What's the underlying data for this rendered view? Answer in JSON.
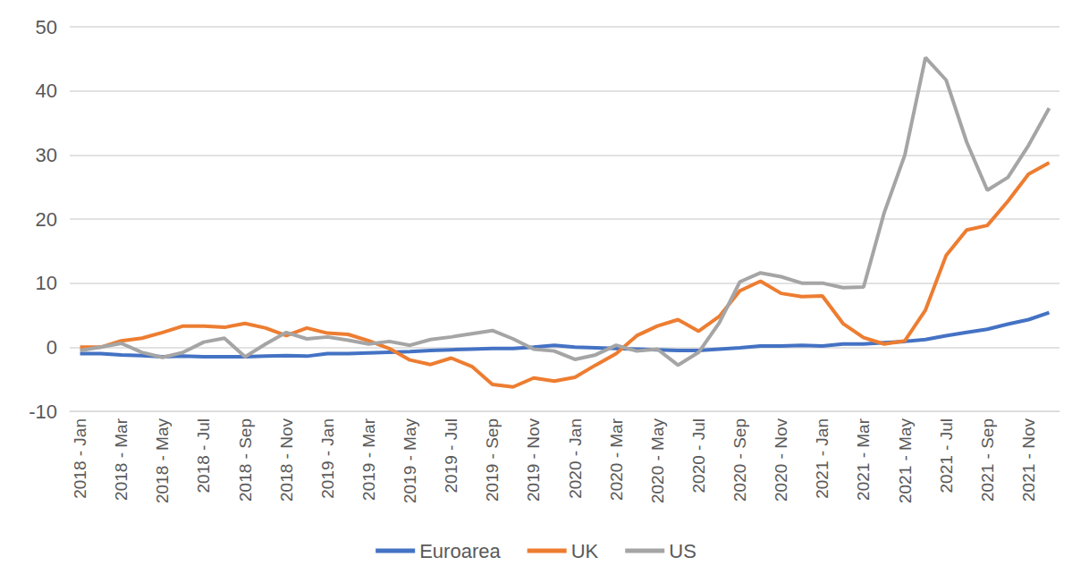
{
  "chart_data": {
    "type": "line",
    "categories": [
      "2018 - Jan",
      null,
      "2018 - Mar",
      null,
      "2018 - May",
      null,
      "2018 - Jul",
      null,
      "2018 - Sep",
      null,
      "2018 - Nov",
      null,
      "2019 - Jan",
      null,
      "2019 - Mar",
      null,
      "2019 - May",
      null,
      "2019 - Jul",
      null,
      "2019 - Sep",
      null,
      "2019 - Nov",
      null,
      "2020 - Jan",
      null,
      "2020 - Mar",
      null,
      "2020 - May",
      null,
      "2020 - Jul",
      null,
      "2020 - Sep",
      null,
      "2020 - Nov",
      null,
      "2021 - Jan",
      null,
      "2021 - Mar",
      null,
      "2021 - May",
      null,
      "2021 - Jul",
      null,
      "2021 - Sep",
      null,
      "2021 - Nov",
      null
    ],
    "series": [
      {
        "name": "Euroarea",
        "color": "#4472c4",
        "values": [
          -1,
          -1,
          -1.2,
          -1.3,
          -1.5,
          -1.4,
          -1.5,
          -1.5,
          -1.5,
          -1.4,
          -1.3,
          -1.4,
          -1,
          -1,
          -0.9,
          -0.8,
          -0.7,
          -0.5,
          -0.4,
          -0.3,
          -0.2,
          -0.2,
          0,
          0.3,
          0,
          -0.1,
          -0.2,
          -0.3,
          -0.4,
          -0.5,
          -0.5,
          -0.3,
          -0.1,
          0.2,
          0.2,
          0.3,
          0.2,
          0.5,
          0.5,
          0.7,
          0.9,
          1.2,
          1.8,
          2.3,
          2.8,
          3.6,
          4.3,
          5.4
        ]
      },
      {
        "name": "UK",
        "color": "#ed7d31",
        "values": [
          0,
          0,
          1,
          1.4,
          2.3,
          3.3,
          3.3,
          3.1,
          3.7,
          3,
          1.8,
          3,
          2.2,
          2,
          1,
          -0.2,
          -2,
          -2.7,
          -1.7,
          -3,
          -5.8,
          -6.2,
          -4.8,
          -5.3,
          -4.7,
          -2.8,
          -1,
          1.8,
          3.3,
          4.3,
          2.5,
          4.8,
          8.8,
          10.3,
          8.4,
          7.9,
          8,
          3.7,
          1.5,
          0.5,
          1,
          5.8,
          14.3,
          18.3,
          19,
          22.8,
          27,
          28.8
        ]
      },
      {
        "name": "US",
        "color": "#a5a5a5",
        "values": [
          -0.5,
          0,
          0.6,
          -0.8,
          -1.6,
          -0.8,
          0.8,
          1.4,
          -1.5,
          0.5,
          2.3,
          1.3,
          1.6,
          1.1,
          0.5,
          0.9,
          0.3,
          1.2,
          1.6,
          2.1,
          2.6,
          1.3,
          -0.3,
          -0.6,
          -1.9,
          -1.2,
          0.3,
          -0.6,
          -0.3,
          -2.8,
          -0.8,
          3.8,
          10.2,
          11.6,
          11,
          10,
          10,
          9.3,
          9.4,
          21,
          30,
          45.2,
          41.7,
          32,
          24.5,
          26.5,
          31.5,
          37.3
        ]
      }
    ],
    "ylim": [
      -10,
      50
    ],
    "yticks": [
      -10,
      0,
      10,
      20,
      30,
      40,
      50
    ],
    "grid": true,
    "legend": "bottom"
  }
}
